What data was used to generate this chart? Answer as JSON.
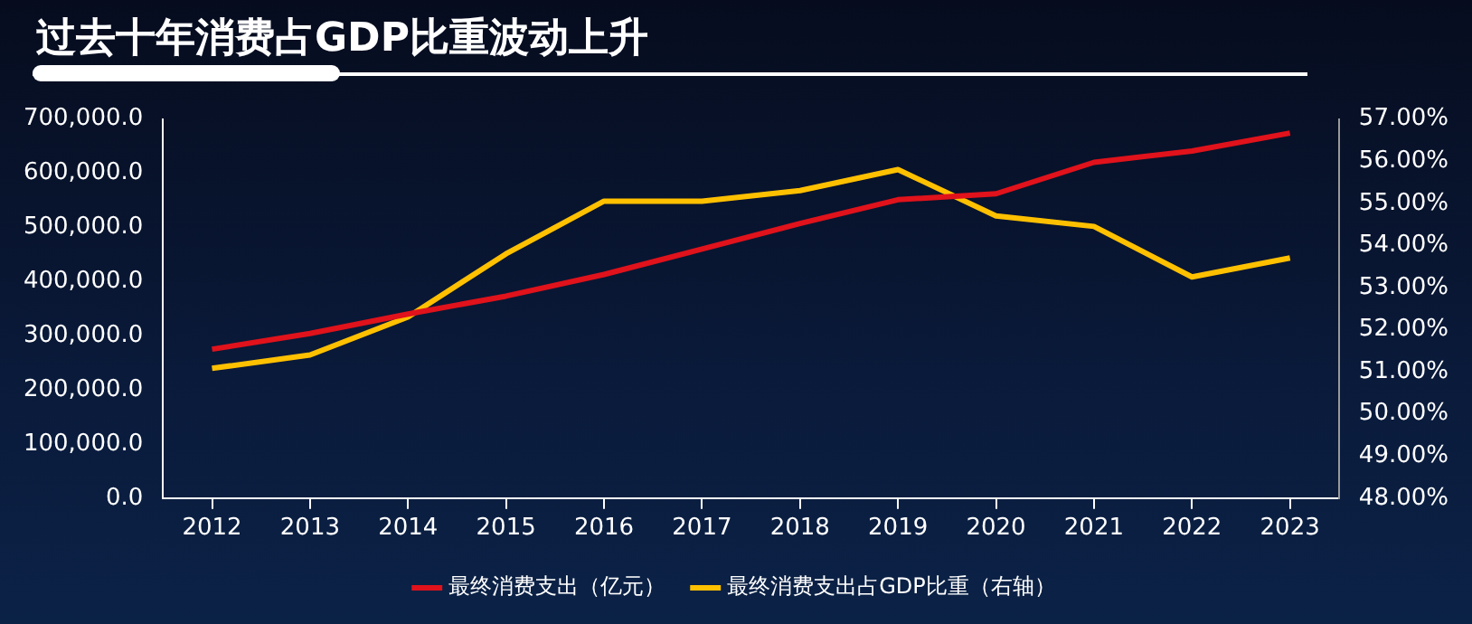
{
  "chart_data": {
    "type": "line",
    "title": "过去十年消费占GDP比重波动上升",
    "categories": [
      "2012",
      "2013",
      "2014",
      "2015",
      "2016",
      "2017",
      "2018",
      "2019",
      "2020",
      "2021",
      "2022",
      "2023"
    ],
    "series": [
      {
        "name": "最终消费支出（亿元）",
        "color": "#e0121b",
        "values": [
          275000,
          304000,
          340000,
          373000,
          413000,
          460000,
          507000,
          551000,
          562000,
          620000,
          641000,
          674000
        ]
      },
      {
        "name": "最终消费支出占GDP比重（右轴）",
        "color": "#ffc000",
        "axis": "y2",
        "values": [
          51.08,
          51.4,
          52.3,
          53.8,
          55.05,
          55.05,
          55.3,
          55.8,
          54.7,
          54.45,
          53.25,
          53.7
        ]
      }
    ],
    "ylim": [
      0,
      700000
    ],
    "yticks": [
      {
        "value": 0,
        "label": "0.0"
      },
      {
        "value": 100000,
        "label": "100,000.0"
      },
      {
        "value": 200000,
        "label": "200,000.0"
      },
      {
        "value": 300000,
        "label": "300,000.0"
      },
      {
        "value": 400000,
        "label": "400,000.0"
      },
      {
        "value": 500000,
        "label": "500,000.0"
      },
      {
        "value": 600000,
        "label": "600,000.0"
      },
      {
        "value": 700000,
        "label": "700,000.0"
      }
    ],
    "y2lim": [
      48,
      57
    ],
    "y2ticks": [
      {
        "value": 48,
        "label": "48.00%"
      },
      {
        "value": 49,
        "label": "49.00%"
      },
      {
        "value": 50,
        "label": "50.00%"
      },
      {
        "value": 51,
        "label": "51.00%"
      },
      {
        "value": 52,
        "label": "52.00%"
      },
      {
        "value": 53,
        "label": "53.00%"
      },
      {
        "value": 54,
        "label": "54.00%"
      },
      {
        "value": 55,
        "label": "55.00%"
      },
      {
        "value": 56,
        "label": "56.00%"
      },
      {
        "value": 57,
        "label": "57.00%"
      }
    ],
    "grid": false,
    "legend": "bottom",
    "marker": "none"
  }
}
